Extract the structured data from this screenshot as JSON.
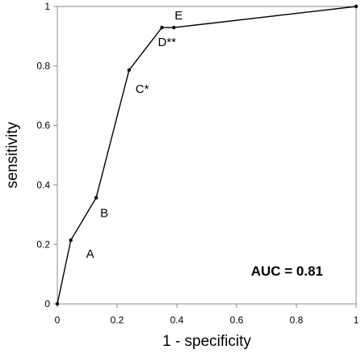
{
  "chart_data": {
    "type": "line",
    "title": "",
    "xlabel": "1 - specificity",
    "ylabel": "sensitivity",
    "xlim": [
      0,
      1
    ],
    "ylim": [
      0,
      1
    ],
    "xticks": [
      "0",
      "0.2",
      "0.4",
      "0.6",
      "0.8",
      "1"
    ],
    "yticks": [
      "0",
      "0.2",
      "0.4",
      "0.6",
      "0.8",
      "1"
    ],
    "grid": false,
    "annotation": "AUC = 0.81",
    "points": [
      {
        "x": 0.0,
        "y": 0.0,
        "label": ""
      },
      {
        "x": 0.045,
        "y": 0.214,
        "label": "A"
      },
      {
        "x": 0.13,
        "y": 0.357,
        "label": "B"
      },
      {
        "x": 0.24,
        "y": 0.786,
        "label": "C*"
      },
      {
        "x": 0.35,
        "y": 0.929,
        "label": "D**"
      },
      {
        "x": 0.39,
        "y": 0.929,
        "label": "E"
      },
      {
        "x": 1.0,
        "y": 1.0,
        "label": ""
      }
    ],
    "line_color": "#000000"
  }
}
